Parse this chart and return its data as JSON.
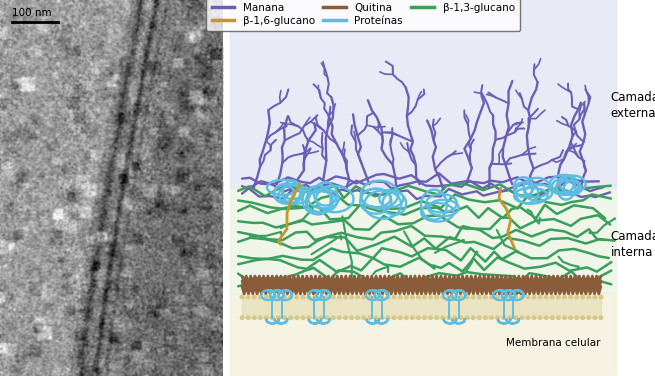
{
  "label_camada_externa": "Camada\nexterna",
  "label_camada_interna": "Camada\ninterna",
  "label_membrana": "Membrana celular",
  "label_scale": "100 nm",
  "manana_color": "#6b5fb5",
  "beta16_color": "#c8952a",
  "quitina_color": "#8b5c3a",
  "proteinas_color": "#5bbde0",
  "beta13_color": "#3a9e5c",
  "membrane_color": "#d4c88a",
  "outer_bg": "#dde0f0",
  "inner_bg": "#e8f0e0",
  "membrane_bg": "#f5f0dc",
  "legend_order": [
    [
      "Manana",
      "#6b5fb5"
    ],
    [
      "β-1,6-glucano",
      "#c8952a"
    ],
    [
      "Quitina",
      "#8b5c3a"
    ],
    [
      "Proteínas",
      "#5bbde0"
    ],
    [
      "β-1,3-glucano",
      "#3a9e5c"
    ]
  ]
}
